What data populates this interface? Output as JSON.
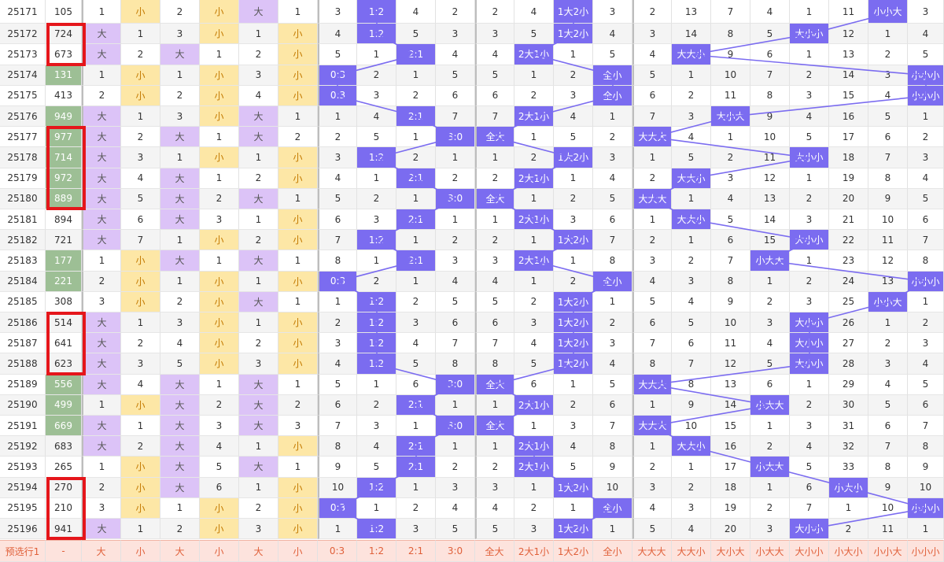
{
  "footer_label": "预选行1",
  "footer_values": [
    "-",
    "大",
    "小",
    "大",
    "小",
    "大",
    "小",
    "0:3",
    "1:2",
    "2:1",
    "3:0",
    "全大",
    "2大1小",
    "1大2小",
    "全小",
    "大大大",
    "大大小",
    "大小大",
    "小大大",
    "大小小",
    "小大小",
    "小小大",
    "小小小"
  ],
  "rows": [
    {
      "issue": "25171",
      "num": "105",
      "v": [
        "1",
        "小",
        "2",
        "小",
        "大",
        "1",
        "3",
        "1:2",
        "4",
        "2",
        "2",
        "4",
        "1大2小",
        "3",
        "2",
        "13",
        "7",
        "4",
        "1",
        "11",
        "小小大",
        "3"
      ]
    },
    {
      "issue": "25172",
      "num": "724",
      "v": [
        "大",
        "1",
        "3",
        "小",
        "1",
        "小",
        "4",
        "1:2",
        "5",
        "3",
        "3",
        "5",
        "1大2小",
        "4",
        "3",
        "14",
        "8",
        "5",
        "大小小",
        "12",
        "1",
        "4"
      ]
    },
    {
      "issue": "25173",
      "num": "673",
      "v": [
        "大",
        "2",
        "大",
        "1",
        "2",
        "小",
        "5",
        "1",
        "2:1",
        "4",
        "4",
        "2大1小",
        "1",
        "5",
        "4",
        "大大小",
        "9",
        "6",
        "1",
        "13",
        "2",
        "5"
      ]
    },
    {
      "issue": "25174",
      "num": "131",
      "v": [
        "1",
        "小",
        "1",
        "小",
        "3",
        "小",
        "0:3",
        "2",
        "1",
        "5",
        "5",
        "1",
        "2",
        "全小",
        "5",
        "1",
        "10",
        "7",
        "2",
        "14",
        "3",
        "小小小"
      ]
    },
    {
      "issue": "25175",
      "num": "413",
      "v": [
        "2",
        "小",
        "2",
        "小",
        "4",
        "小",
        "0:3",
        "3",
        "2",
        "6",
        "6",
        "2",
        "3",
        "全小",
        "6",
        "2",
        "11",
        "8",
        "3",
        "15",
        "4",
        "小小小"
      ]
    },
    {
      "issue": "25176",
      "num": "949",
      "v": [
        "大",
        "1",
        "3",
        "小",
        "大",
        "1",
        "1",
        "4",
        "2:1",
        "7",
        "7",
        "2大1小",
        "4",
        "1",
        "7",
        "3",
        "大小大",
        "9",
        "4",
        "16",
        "5",
        "1"
      ]
    },
    {
      "issue": "25177",
      "num": "977",
      "v": [
        "大",
        "2",
        "大",
        "1",
        "大",
        "2",
        "2",
        "5",
        "1",
        "3:0",
        "全大",
        "1",
        "5",
        "2",
        "大大大",
        "4",
        "1",
        "10",
        "5",
        "17",
        "6",
        "2"
      ]
    },
    {
      "issue": "25178",
      "num": "714",
      "v": [
        "大",
        "3",
        "1",
        "小",
        "1",
        "小",
        "3",
        "1:2",
        "2",
        "1",
        "1",
        "2",
        "1大2小",
        "3",
        "1",
        "5",
        "2",
        "11",
        "大小小",
        "18",
        "7",
        "3"
      ]
    },
    {
      "issue": "25179",
      "num": "972",
      "v": [
        "大",
        "4",
        "大",
        "1",
        "2",
        "小",
        "4",
        "1",
        "2:1",
        "2",
        "2",
        "2大1小",
        "1",
        "4",
        "2",
        "大大小",
        "3",
        "12",
        "1",
        "19",
        "8",
        "4"
      ]
    },
    {
      "issue": "25180",
      "num": "889",
      "v": [
        "大",
        "5",
        "大",
        "2",
        "大",
        "1",
        "5",
        "2",
        "1",
        "3:0",
        "全大",
        "1",
        "2",
        "5",
        "大大大",
        "1",
        "4",
        "13",
        "2",
        "20",
        "9",
        "5"
      ]
    },
    {
      "issue": "25181",
      "num": "894",
      "v": [
        "大",
        "6",
        "大",
        "3",
        "1",
        "小",
        "6",
        "3",
        "2:1",
        "1",
        "1",
        "2大1小",
        "3",
        "6",
        "1",
        "大大小",
        "5",
        "14",
        "3",
        "21",
        "10",
        "6"
      ]
    },
    {
      "issue": "25182",
      "num": "721",
      "v": [
        "大",
        "7",
        "1",
        "小",
        "2",
        "小",
        "7",
        "1:2",
        "1",
        "2",
        "2",
        "1",
        "1大2小",
        "7",
        "2",
        "1",
        "6",
        "15",
        "大小小",
        "22",
        "11",
        "7"
      ]
    },
    {
      "issue": "25183",
      "num": "177",
      "v": [
        "1",
        "小",
        "大",
        "1",
        "大",
        "1",
        "8",
        "1",
        "2:1",
        "3",
        "3",
        "2大1小",
        "1",
        "8",
        "3",
        "2",
        "7",
        "小大大",
        "1",
        "23",
        "12",
        "8"
      ]
    },
    {
      "issue": "25184",
      "num": "221",
      "v": [
        "2",
        "小",
        "1",
        "小",
        "1",
        "小",
        "0:3",
        "2",
        "1",
        "4",
        "4",
        "1",
        "2",
        "全小",
        "4",
        "3",
        "8",
        "1",
        "2",
        "24",
        "13",
        "小小小"
      ]
    },
    {
      "issue": "25185",
      "num": "308",
      "v": [
        "3",
        "小",
        "2",
        "小",
        "大",
        "1",
        "1",
        "1:2",
        "2",
        "5",
        "5",
        "2",
        "1大2小",
        "1",
        "5",
        "4",
        "9",
        "2",
        "3",
        "25",
        "小小大",
        "1"
      ]
    },
    {
      "issue": "25186",
      "num": "514",
      "v": [
        "大",
        "1",
        "3",
        "小",
        "1",
        "小",
        "2",
        "1:2",
        "3",
        "6",
        "6",
        "3",
        "1大2小",
        "2",
        "6",
        "5",
        "10",
        "3",
        "大小小",
        "26",
        "1",
        "2"
      ]
    },
    {
      "issue": "25187",
      "num": "641",
      "v": [
        "大",
        "2",
        "4",
        "小",
        "2",
        "小",
        "3",
        "1:2",
        "4",
        "7",
        "7",
        "4",
        "1大2小",
        "3",
        "7",
        "6",
        "11",
        "4",
        "大小小",
        "27",
        "2",
        "3"
      ]
    },
    {
      "issue": "25188",
      "num": "623",
      "v": [
        "大",
        "3",
        "5",
        "小",
        "3",
        "小",
        "4",
        "1:2",
        "5",
        "8",
        "8",
        "5",
        "1大2小",
        "4",
        "8",
        "7",
        "12",
        "5",
        "大小小",
        "28",
        "3",
        "4"
      ]
    },
    {
      "issue": "25189",
      "num": "556",
      "v": [
        "大",
        "4",
        "大",
        "1",
        "大",
        "1",
        "5",
        "1",
        "6",
        "3:0",
        "全大",
        "6",
        "1",
        "5",
        "大大大",
        "8",
        "13",
        "6",
        "1",
        "29",
        "4",
        "5"
      ]
    },
    {
      "issue": "25190",
      "num": "499",
      "v": [
        "1",
        "小",
        "大",
        "2",
        "大",
        "2",
        "6",
        "2",
        "2:1",
        "1",
        "1",
        "2大1小",
        "2",
        "6",
        "1",
        "9",
        "14",
        "小大大",
        "2",
        "30",
        "5",
        "6"
      ]
    },
    {
      "issue": "25191",
      "num": "669",
      "v": [
        "大",
        "1",
        "大",
        "3",
        "大",
        "3",
        "7",
        "3",
        "1",
        "3:0",
        "全大",
        "1",
        "3",
        "7",
        "大大大",
        "10",
        "15",
        "1",
        "3",
        "31",
        "6",
        "7"
      ]
    },
    {
      "issue": "25192",
      "num": "683",
      "v": [
        "大",
        "2",
        "大",
        "4",
        "1",
        "小",
        "8",
        "4",
        "2:1",
        "1",
        "1",
        "2大1小",
        "4",
        "8",
        "1",
        "大大小",
        "16",
        "2",
        "4",
        "32",
        "7",
        "8"
      ]
    },
    {
      "issue": "25193",
      "num": "265",
      "v": [
        "1",
        "小",
        "大",
        "5",
        "大",
        "1",
        "9",
        "5",
        "2:1",
        "2",
        "2",
        "2大1小",
        "5",
        "9",
        "2",
        "1",
        "17",
        "小大大",
        "5",
        "33",
        "8",
        "9"
      ]
    },
    {
      "issue": "25194",
      "num": "270",
      "v": [
        "2",
        "小",
        "大",
        "6",
        "1",
        "小",
        "10",
        "1:2",
        "1",
        "3",
        "3",
        "1",
        "1大2小",
        "10",
        "3",
        "2",
        "18",
        "1",
        "6",
        "小大小",
        "9",
        "10"
      ]
    },
    {
      "issue": "25195",
      "num": "210",
      "v": [
        "3",
        "小",
        "1",
        "小",
        "2",
        "小",
        "0:3",
        "1",
        "2",
        "4",
        "4",
        "2",
        "1",
        "全小",
        "4",
        "3",
        "19",
        "2",
        "7",
        "1",
        "10",
        "小小小"
      ]
    },
    {
      "issue": "25196",
      "num": "941",
      "v": [
        "大",
        "1",
        "2",
        "小",
        "3",
        "小",
        "1",
        "1:2",
        "3",
        "5",
        "5",
        "3",
        "1大2小",
        "1",
        "5",
        "4",
        "20",
        "3",
        "大小小",
        "2",
        "11",
        "1"
      ]
    }
  ]
}
